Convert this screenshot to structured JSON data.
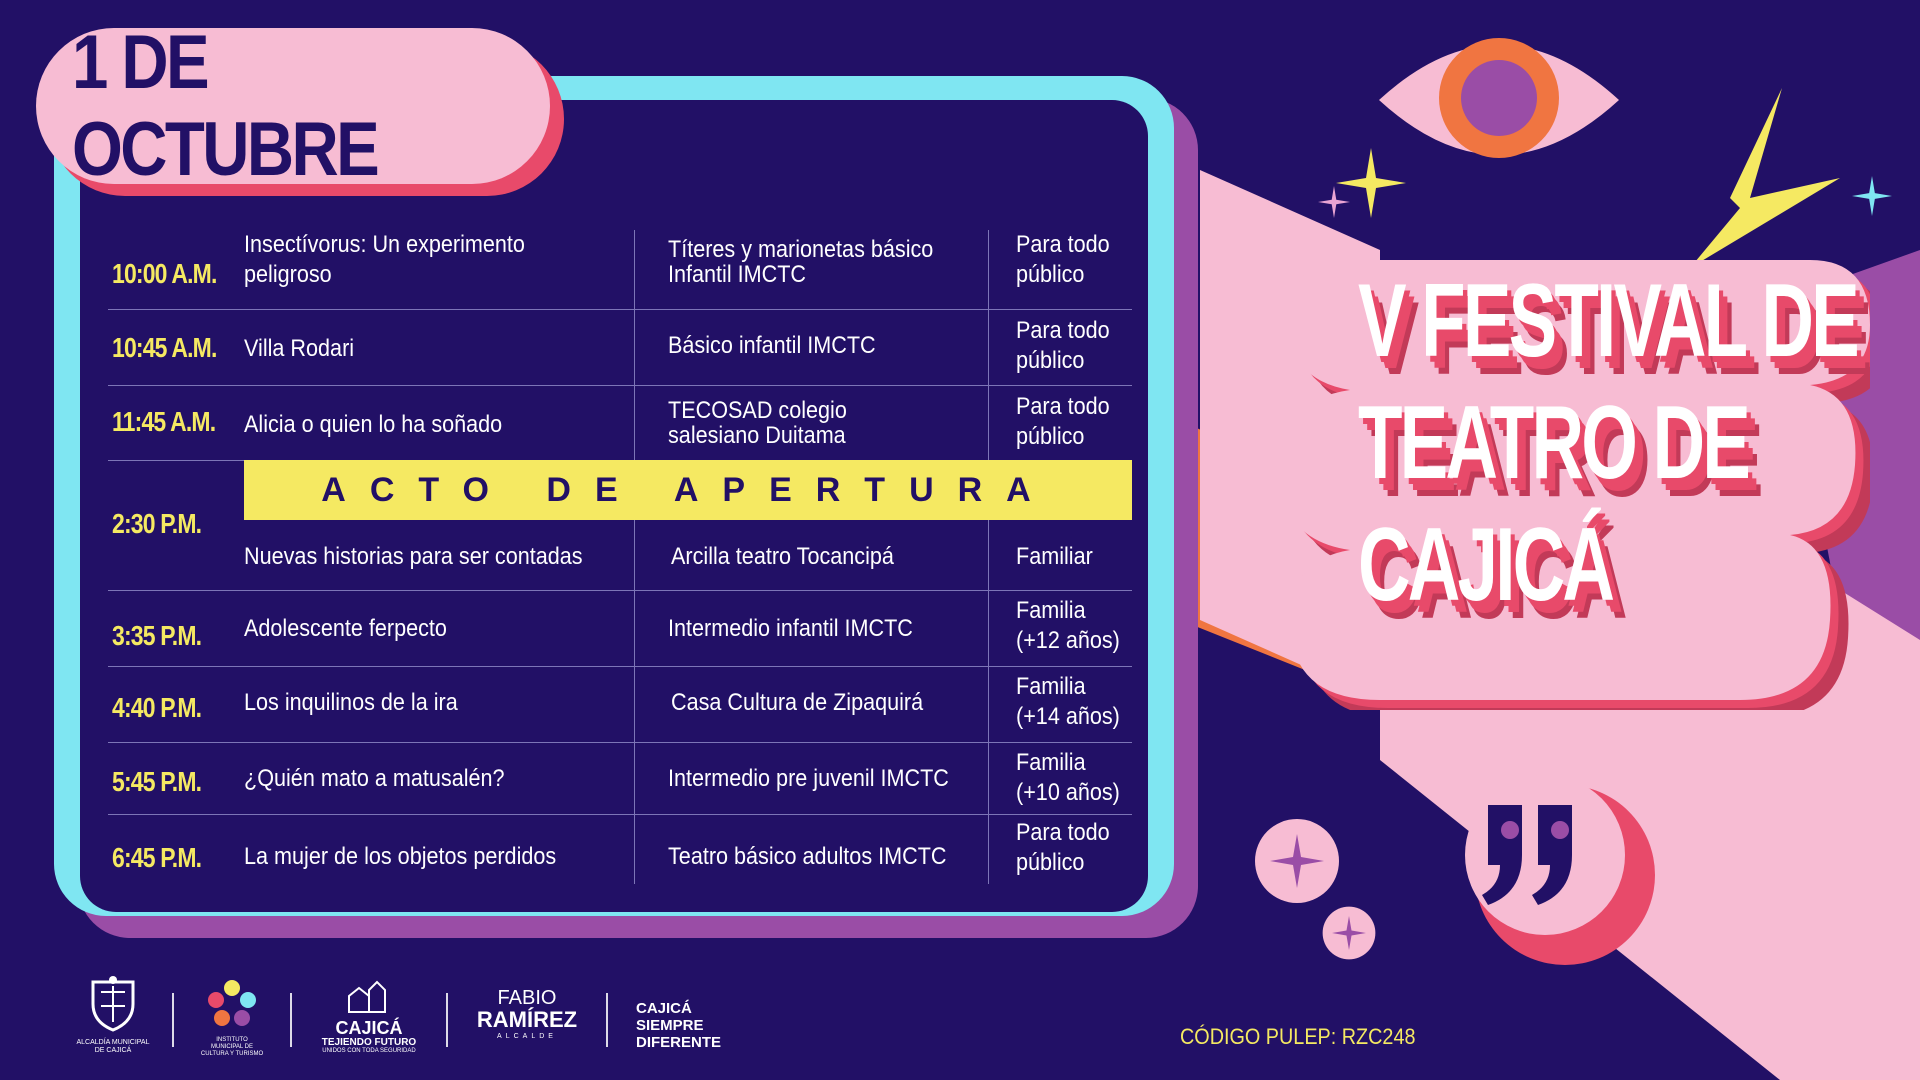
{
  "date_label": "1 DE OCTUBRE",
  "schedule": [
    {
      "time": "10:00 A.M.",
      "title": "Insectívorus: Un experimento peligroso",
      "group": "Títeres y marionetas básico Infantil IMCTC",
      "audience": "Para todo público"
    },
    {
      "time": "10:45 A.M.",
      "title": "Villa Rodari",
      "group": "Básico infantil IMCTC",
      "audience": "Para todo público"
    },
    {
      "time": "11:45 A.M.",
      "title": "Alicia o quien lo ha soñado",
      "group": "TECOSAD colegio salesiano Duitama",
      "audience": "Para todo público"
    },
    {
      "time": "2:30 P.M.",
      "title": "Nuevas historias para ser contadas",
      "group": "Arcilla teatro Tocancipá",
      "audience": "Familiar"
    },
    {
      "time": "3:35 P.M.",
      "title": "Adolescente ferpecto",
      "group": "Intermedio infantil IMCTC",
      "audience": "Familia (+12 años)"
    },
    {
      "time": "4:40 P.M.",
      "title": "Los inquilinos de la ira",
      "group": "Casa Cultura  de Zipaquirá",
      "audience": "Familia (+14 años)"
    },
    {
      "time": "5:45 P.M.",
      "title": "¿Quién mato a matusalén?",
      "group": "Intermedio  pre juvenil IMCTC",
      "audience": "Familia (+10 años)"
    },
    {
      "time": "6:45 P.M.",
      "title": "La mujer de los objetos perdidos",
      "group": "Teatro básico adultos IMCTC",
      "audience": "Para todo público"
    }
  ],
  "opening_banner": "ACTO DE APERTURA",
  "festival_title": [
    "V FESTIVAL DE",
    "TEATRO DE",
    "CAJICÁ"
  ],
  "footer": {
    "logo1_caption": "ALCALDÍA MUNICIPAL DE CAJICÁ",
    "logo2_caption": "INSTITUTO MUNICIPAL DE CULTURA Y TURISMO",
    "logo3_name": "CAJICÁ",
    "logo3_sub": "TEJIENDO FUTURO",
    "logo3_tag": "UNIDOS CON TODA SEGURIDAD",
    "mayor_first": "FABIO",
    "mayor_last": "RAMÍREZ",
    "mayor_role": "ALCALDE",
    "slogan": [
      "CAJICÁ",
      "SIEMPRE",
      "DIFERENTE"
    ],
    "pulep": "CÓDIGO PULEP: RZC248"
  },
  "colors": {
    "background": "#221066",
    "pink": "#f7bcd3",
    "coral": "#e84a6a",
    "yellow": "#f5e962",
    "cyan": "#7fe6f2",
    "orange": "#f07541",
    "purple": "#9a4da6"
  },
  "icons": [
    "eye-icon",
    "lightning-icon",
    "sparkle-icon",
    "quote-icon"
  ]
}
